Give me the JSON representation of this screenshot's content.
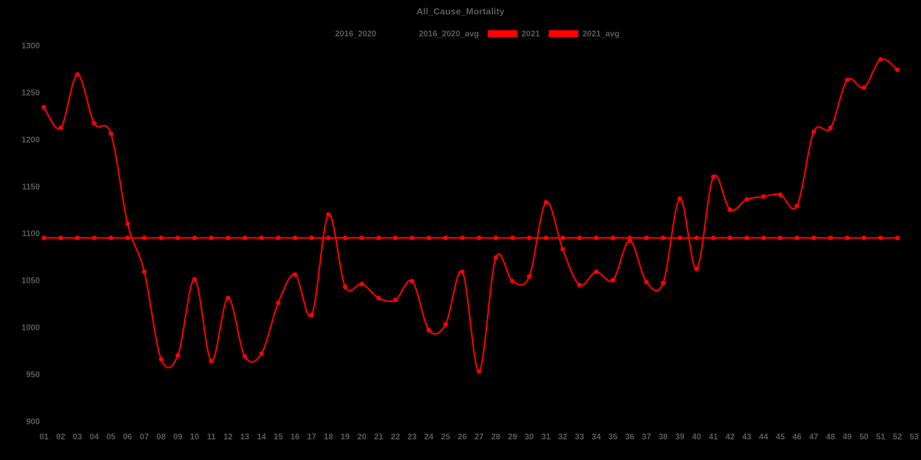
{
  "page": {
    "background_color": "#000000",
    "text_color": "#595959",
    "accent_color": "#ff0000"
  },
  "chart_data": {
    "type": "line",
    "title": "All_Cause_Mortality",
    "xlabel": "",
    "ylabel": "",
    "ylim": [
      900,
      1300
    ],
    "y_ticks": [
      900,
      950,
      1000,
      1050,
      1100,
      1150,
      1200,
      1250,
      1300
    ],
    "grid": false,
    "legend_position": "top",
    "legend": [
      {
        "label": "2016_2020",
        "swatch_color": "#000000"
      },
      {
        "label": "2016_2020_avg",
        "swatch_color": "#000000"
      },
      {
        "label": "2021",
        "swatch_color": "#ff0000"
      },
      {
        "label": "2021_avg",
        "swatch_color": "#ff0000"
      }
    ],
    "x_labels": [
      "01",
      "02",
      "03",
      "04",
      "05",
      "06",
      "07",
      "08",
      "09",
      "10",
      "11",
      "12",
      "13",
      "14",
      "15",
      "16",
      "17",
      "18",
      "19",
      "20",
      "21",
      "22",
      "23",
      "24",
      "25",
      "26",
      "27",
      "28",
      "29",
      "30",
      "31",
      "32",
      "33",
      "34",
      "35",
      "36",
      "37",
      "38",
      "39",
      "40",
      "41",
      "42",
      "43",
      "44",
      "45",
      "46",
      "47",
      "48",
      "49",
      "50",
      "51",
      "52",
      "53"
    ],
    "series": [
      {
        "name": "2021",
        "color": "#ff0000",
        "marker": "circle",
        "smooth": true,
        "values": [
          1234,
          1212,
          1269,
          1217,
          1206,
          1110,
          1059,
          966,
          970,
          1051,
          964,
          1031,
          969,
          972,
          1026,
          1056,
          1013,
          1120,
          1043,
          1046,
          1031,
          1029,
          1049,
          997,
          1003,
          1059,
          953,
          1074,
          1049,
          1054,
          1133,
          1083,
          1045,
          1059,
          1050,
          1092,
          1048,
          1047,
          1137,
          1062,
          1160,
          1125,
          1136,
          1139,
          1141,
          1129,
          1208,
          1212,
          1263,
          1255,
          1285,
          1274
        ]
      },
      {
        "name": "2021_avg",
        "color": "#ff0000",
        "marker": "circle",
        "smooth": false,
        "values": [
          1095,
          1095,
          1095,
          1095,
          1095,
          1095,
          1095,
          1095,
          1095,
          1095,
          1095,
          1095,
          1095,
          1095,
          1095,
          1095,
          1095,
          1095,
          1095,
          1095,
          1095,
          1095,
          1095,
          1095,
          1095,
          1095,
          1095,
          1095,
          1095,
          1095,
          1095,
          1095,
          1095,
          1095,
          1095,
          1095,
          1095,
          1095,
          1095,
          1095,
          1095,
          1095,
          1095,
          1095,
          1095,
          1095,
          1095,
          1095,
          1095,
          1095,
          1095,
          1095
        ]
      }
    ]
  }
}
